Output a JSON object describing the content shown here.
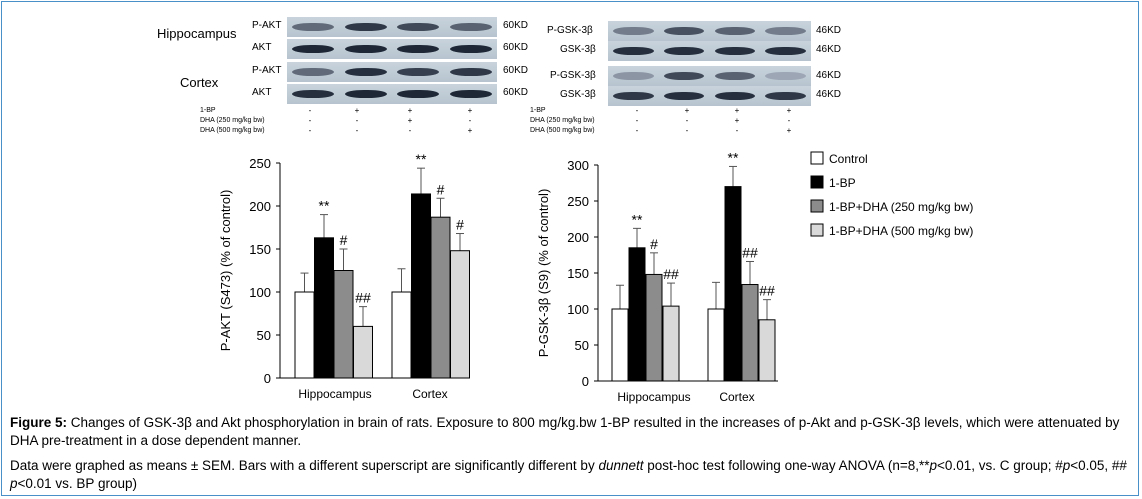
{
  "blots": {
    "left": {
      "group_labels": [
        "Hippocampus",
        "Cortex"
      ],
      "rows": [
        {
          "label": "P-AKT",
          "kd": "60KD",
          "intensities": [
            0.55,
            0.85,
            0.75,
            0.6
          ]
        },
        {
          "label": "AKT",
          "kd": "60KD",
          "intensities": [
            0.95,
            0.95,
            0.95,
            0.95
          ]
        },
        {
          "label": "P-AKT",
          "kd": "60KD",
          "intensities": [
            0.55,
            0.9,
            0.8,
            0.85
          ]
        },
        {
          "label": "AKT",
          "kd": "60KD",
          "intensities": [
            0.9,
            0.95,
            0.95,
            0.95
          ]
        }
      ],
      "treatments": [
        {
          "label": "1-BP",
          "values": [
            "-",
            "+",
            "+",
            "+"
          ]
        },
        {
          "label": "DHA (250 mg/kg bw)",
          "values": [
            "-",
            "-",
            "+",
            "-"
          ]
        },
        {
          "label": "DHA (500 mg/kg bw)",
          "values": [
            "-",
            "-",
            "-",
            "+"
          ]
        }
      ]
    },
    "right": {
      "rows": [
        {
          "label": "P-GSK-3β",
          "kd": "46KD",
          "intensities": [
            0.45,
            0.7,
            0.6,
            0.45
          ]
        },
        {
          "label": "GSK-3β",
          "kd": "46KD",
          "intensities": [
            0.9,
            0.9,
            0.9,
            0.9
          ]
        },
        {
          "label": "P-GSK-3β",
          "kd": "46KD",
          "intensities": [
            0.3,
            0.75,
            0.6,
            0.2
          ]
        },
        {
          "label": "GSK-3β",
          "kd": "46KD",
          "intensities": [
            0.85,
            0.9,
            0.9,
            0.85
          ]
        }
      ],
      "treatments": [
        {
          "label": "1-BP",
          "values": [
            "-",
            "+",
            "+",
            "+"
          ]
        },
        {
          "label": "DHA (250 mg/kg bw)",
          "values": [
            "-",
            "-",
            "+",
            "-"
          ]
        },
        {
          "label": "DHA (500 mg/kg bw)",
          "values": [
            "-",
            "-",
            "-",
            "+"
          ]
        }
      ]
    }
  },
  "colors": {
    "series": [
      "#ffffff",
      "#000000",
      "#8c8c8c",
      "#d9d9d9"
    ],
    "border": "#4a90c8"
  },
  "legend": [
    "Control",
    "1-BP",
    "1-BP+DHA (250 mg/kg bw)",
    "1-BP+DHA (500 mg/kg bw)"
  ],
  "chart_data": [
    {
      "type": "bar",
      "categories": [
        "Hippocampus",
        "Cortex"
      ],
      "ylabel": "P-AKT (S473) (% of control)",
      "ylim": [
        0,
        250
      ],
      "yticks": [
        0,
        50,
        100,
        150,
        200,
        250
      ],
      "series": [
        {
          "name": "Control",
          "values": [
            100,
            100
          ],
          "errors": [
            22,
            27
          ],
          "marks": [
            "",
            ""
          ]
        },
        {
          "name": "1-BP",
          "values": [
            163,
            214
          ],
          "errors": [
            27,
            30
          ],
          "marks": [
            "**",
            "**"
          ]
        },
        {
          "name": "1-BP+DHA (250 mg/kg bw)",
          "values": [
            125,
            187
          ],
          "errors": [
            25,
            22
          ],
          "marks": [
            "#",
            "#"
          ]
        },
        {
          "name": "1-BP+DHA (500 mg/kg bw)",
          "values": [
            60,
            148
          ],
          "errors": [
            23,
            20
          ],
          "marks": [
            "##",
            "#"
          ]
        }
      ]
    },
    {
      "type": "bar",
      "categories": [
        "Hippocampus",
        "Cortex"
      ],
      "ylabel": "P-GSK-3β (S9) (% of control)",
      "ylim": [
        0,
        300
      ],
      "yticks": [
        0,
        50,
        100,
        150,
        200,
        250,
        300
      ],
      "series": [
        {
          "name": "Control",
          "values": [
            100,
            100
          ],
          "errors": [
            33,
            37
          ],
          "marks": [
            "",
            ""
          ]
        },
        {
          "name": "1-BP",
          "values": [
            185,
            270
          ],
          "errors": [
            27,
            28
          ],
          "marks": [
            "**",
            "**"
          ]
        },
        {
          "name": "1-BP+DHA (250 mg/kg bw)",
          "values": [
            148,
            134
          ],
          "errors": [
            30,
            32
          ],
          "marks": [
            "#",
            "##"
          ]
        },
        {
          "name": "1-BP+DHA (500 mg/kg bw)",
          "values": [
            104,
            85
          ],
          "errors": [
            32,
            28
          ],
          "marks": [
            "##",
            "##"
          ]
        }
      ]
    }
  ],
  "caption": {
    "figure_label": "Figure 5:",
    "main_text": " Changes of GSK-3β and Akt phosphorylation in brain of rats. Exposure to 800 mg/kg.bw 1-BP resulted in the increases of p-Akt and p-GSK-3β levels, which were attenuated by DHA pre-treatment in a dose dependent manner.",
    "note_a": "Data were graphed as means ± SEM. Bars with a different superscript are significantly different by ",
    "note_italic": "dunnett",
    "note_b": " post-hoc test following one-way ANOVA (n=8,**",
    "note_p1": "p",
    "note_c": "<0.01, vs. C group; #",
    "note_p2": "p",
    "note_d": "<0.05, ## ",
    "note_p3": "p",
    "note_e": "<0.01 vs. BP group)"
  }
}
